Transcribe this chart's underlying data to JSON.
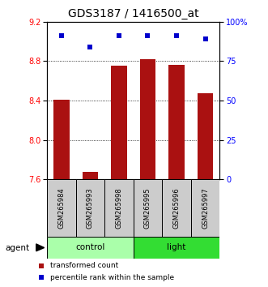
{
  "title": "GDS3187 / 1416500_at",
  "samples": [
    "GSM265984",
    "GSM265993",
    "GSM265998",
    "GSM265995",
    "GSM265996",
    "GSM265997"
  ],
  "bar_values": [
    8.41,
    7.68,
    8.75,
    8.82,
    8.76,
    8.47
  ],
  "dot_values": [
    91,
    84,
    91,
    91,
    91,
    89
  ],
  "ylim_left": [
    7.6,
    9.2
  ],
  "ylim_right": [
    0,
    100
  ],
  "yticks_left": [
    7.6,
    8.0,
    8.4,
    8.8,
    9.2
  ],
  "yticks_right": [
    0,
    25,
    50,
    75,
    100
  ],
  "bar_color": "#aa1111",
  "dot_color": "#0000cc",
  "groups": [
    {
      "label": "control",
      "color": "#aaffaa"
    },
    {
      "label": "light",
      "color": "#33dd33"
    }
  ],
  "agent_label": "agent",
  "legend_bar_label": "transformed count",
  "legend_dot_label": "percentile rank within the sample",
  "bar_width": 0.55,
  "sample_box_color": "#cccccc",
  "title_fontsize": 10,
  "tick_fontsize": 7,
  "label_fontsize": 7.5
}
